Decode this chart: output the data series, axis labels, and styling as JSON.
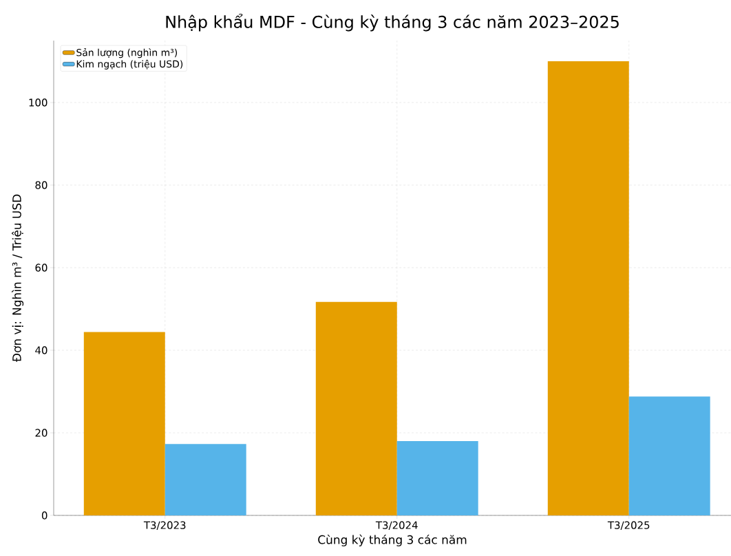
{
  "chart_data": {
    "type": "bar",
    "title": "Nhập khẩu MDF - Cùng kỳ tháng 3 các năm 2023–2025",
    "xlabel": "Cùng kỳ tháng 3 các năm",
    "ylabel": "Đơn vị: Nghìn m³ / Triệu USD",
    "categories": [
      "T3/2023",
      "T3/2024",
      "T3/2025"
    ],
    "series": [
      {
        "name": "Sản lượng (nghìn m³)",
        "color": "#e69f00",
        "values": [
          44.4,
          51.7,
          110.0
        ]
      },
      {
        "name": "Kim ngạch (triệu USD)",
        "color": "#56b4e9",
        "values": [
          17.3,
          18.0,
          28.8
        ]
      }
    ],
    "ylim": [
      0,
      115
    ],
    "yticks": [
      0,
      20,
      40,
      60,
      80,
      100
    ],
    "grid": true,
    "legend": "top left"
  }
}
